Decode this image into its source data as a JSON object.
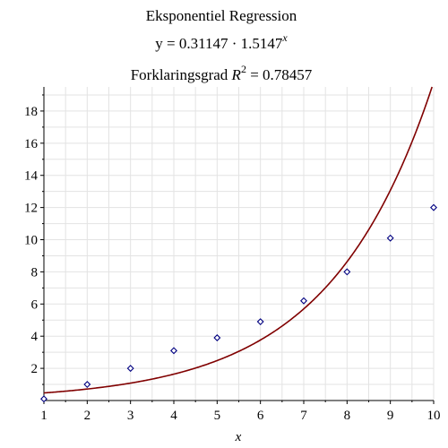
{
  "chart_data": {
    "type": "scatter",
    "title": "Eksponentiel Regression",
    "equation": {
      "lhs": "y = 0.31147 · 1.5147",
      "exponent": "x"
    },
    "r_squared": {
      "prefix": "Forklaringsgrad ",
      "symbol": "R",
      "power": "2",
      "suffix": " = 0.78457"
    },
    "xlabel": "x",
    "ylabel": "",
    "xlim": [
      1,
      10
    ],
    "ylim": [
      0,
      19.5
    ],
    "xticks": [
      1,
      2,
      3,
      4,
      5,
      6,
      7,
      8,
      9,
      10
    ],
    "yticks": [
      2,
      4,
      6,
      8,
      10,
      12,
      14,
      16,
      18
    ],
    "grid": true,
    "series": [
      {
        "kind": "points",
        "marker": "diamond",
        "x": [
          1,
          2,
          3,
          4,
          5,
          6,
          7,
          8,
          9,
          10
        ],
        "y": [
          0.1,
          1.0,
          2.0,
          3.1,
          3.9,
          4.9,
          6.2,
          8.0,
          10.1,
          12.0
        ]
      },
      {
        "kind": "curve",
        "model": "exponential",
        "a": 0.31147,
        "b": 1.5147
      }
    ],
    "colors": {
      "points": "#000080",
      "curve": "#800000",
      "grid": "#e3e3e3",
      "axis": "#000000"
    }
  }
}
